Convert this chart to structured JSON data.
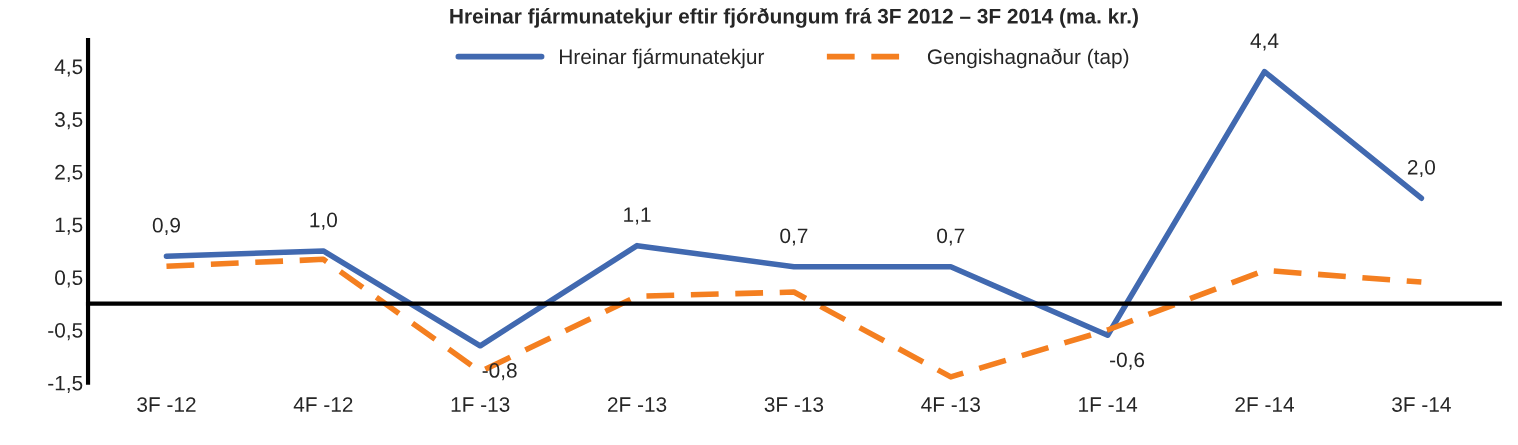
{
  "chart_data": {
    "type": "line",
    "title": "Hreinar fjármunatekjur eftir fjórðungum frá 3F 2012 – 3F 2014 (ma. kr.)",
    "categories": [
      "3F -12",
      "4F -12",
      "1F -13",
      "2F -13",
      "3F -13",
      "4F -13",
      "1F -14",
      "2F -14",
      "3F -14"
    ],
    "series": [
      {
        "name": "Hreinar fjármunatekjur",
        "color": "#4169b0",
        "line_style": "solid",
        "values": [
          0.9,
          1.0,
          -0.8,
          1.1,
          0.7,
          0.7,
          -0.6,
          4.4,
          2.0
        ],
        "value_labels": [
          "0,9",
          "1,0",
          "-0,8",
          "1,1",
          "0,7",
          "0,7",
          "-0,6",
          "4,4",
          "2,0"
        ]
      },
      {
        "name": "Gengishagnaður (tap)",
        "color": "#f47f20",
        "line_style": "dashed",
        "values": [
          0.71,
          0.84,
          -1.29,
          0.14,
          0.22,
          -1.39,
          -0.5,
          0.63,
          0.41
        ]
      }
    ],
    "ylim": [
      -1.5,
      5.0
    ],
    "yticks": [
      {
        "value": -1.5,
        "label": "-1,5"
      },
      {
        "value": -0.5,
        "label": "-0,5"
      },
      {
        "value": 0.5,
        "label": "0,5"
      },
      {
        "value": 1.5,
        "label": "1,5"
      },
      {
        "value": 2.5,
        "label": "2,5"
      },
      {
        "value": 3.5,
        "label": "3,5"
      },
      {
        "value": 4.5,
        "label": "4,5"
      }
    ],
    "grid": false,
    "legend": "top",
    "marker": "none"
  }
}
